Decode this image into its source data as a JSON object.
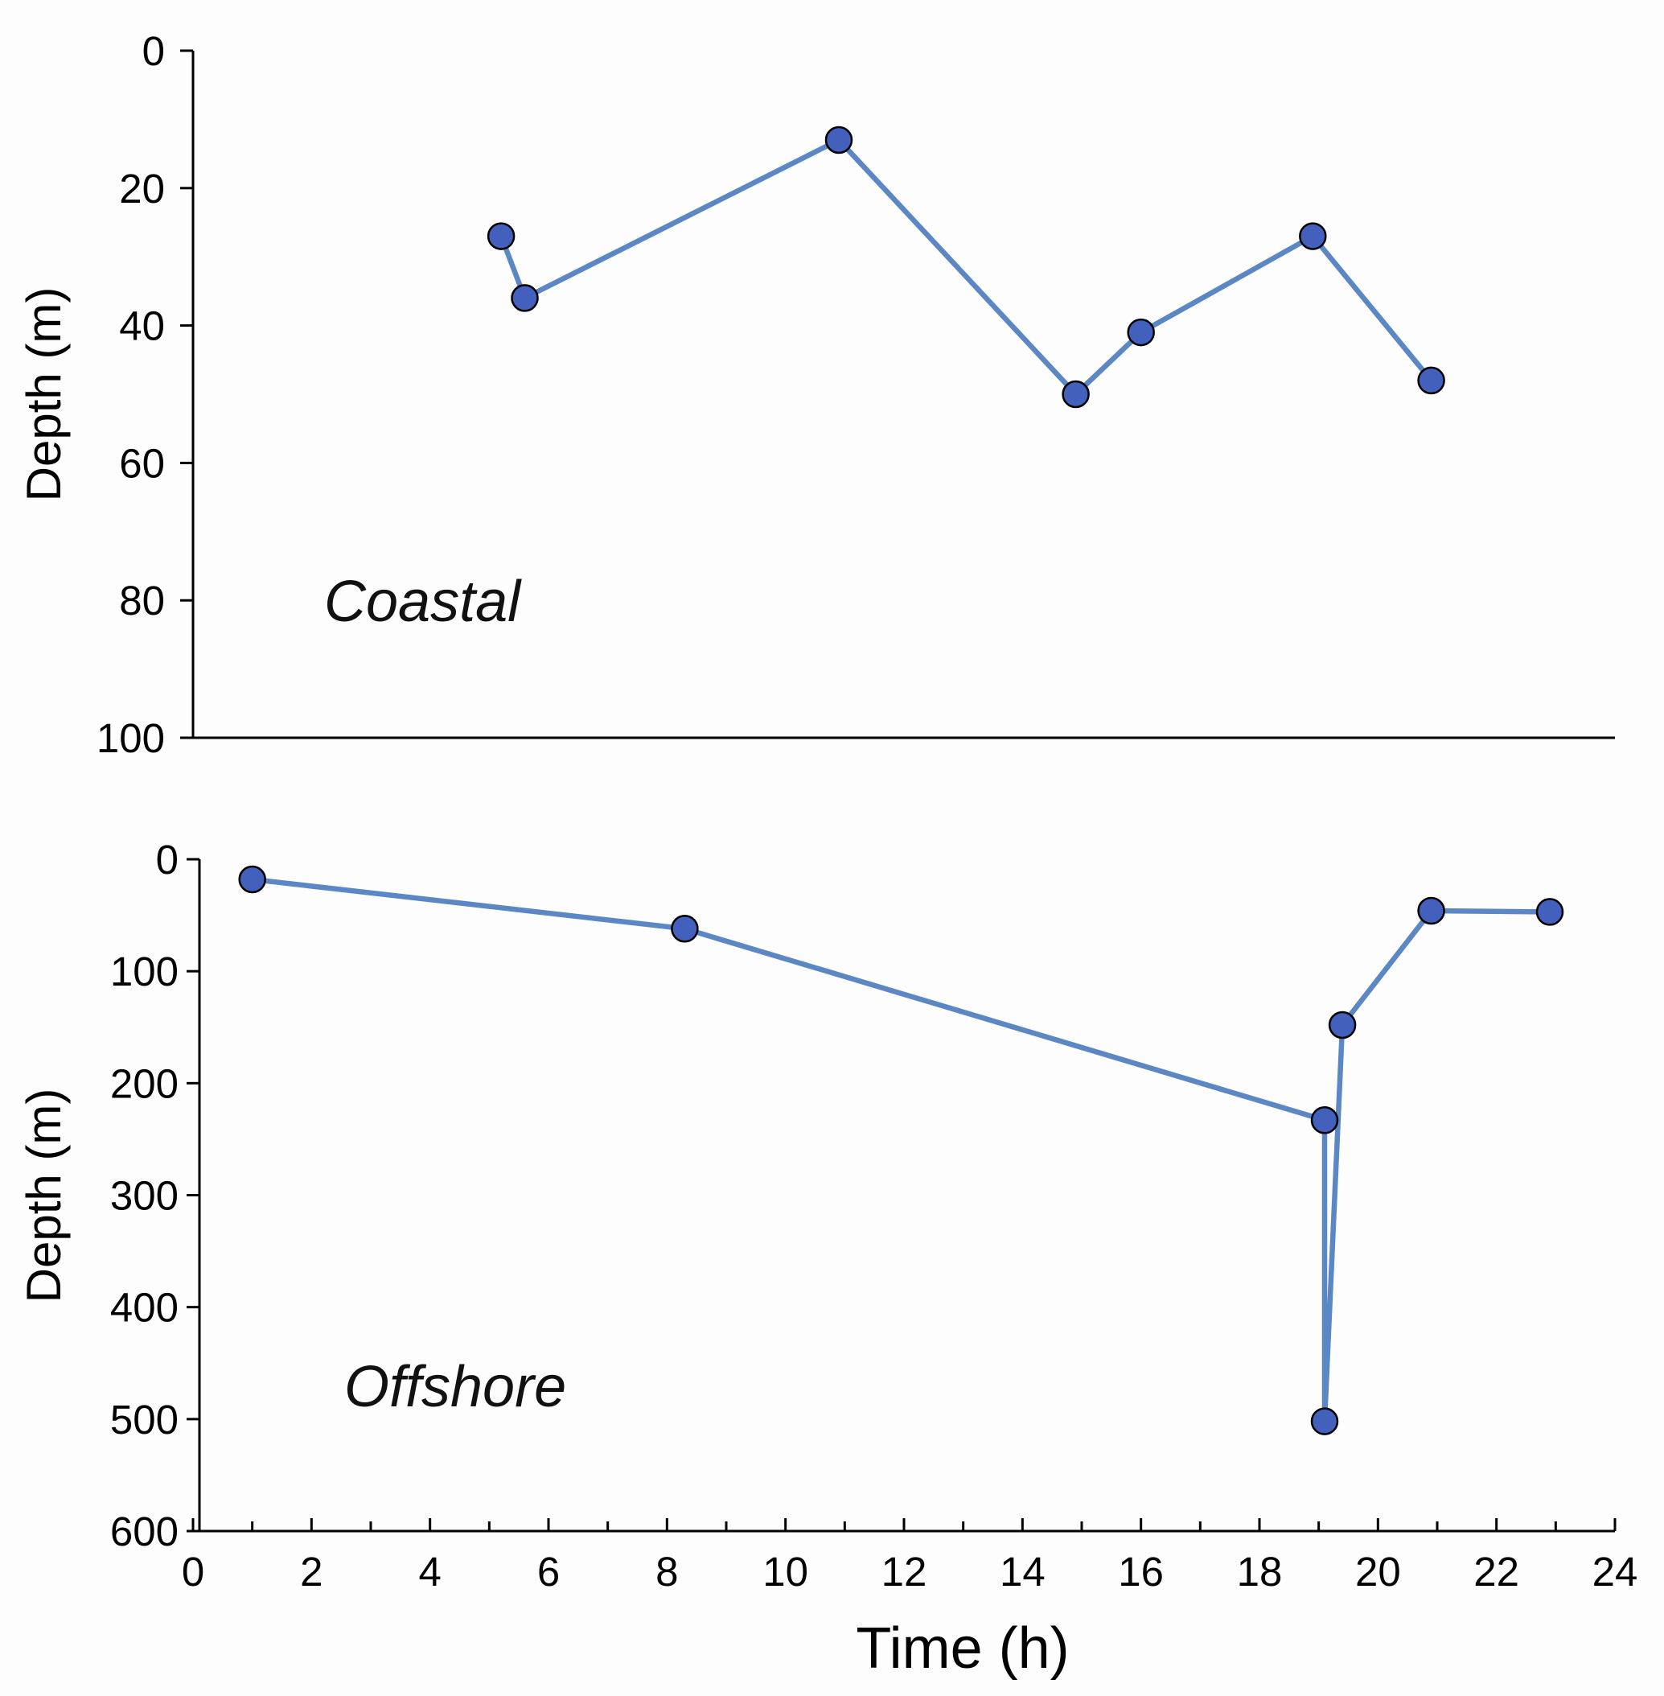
{
  "colors": {
    "line": "#5b87c5",
    "marker": "#4460bd",
    "marker_edge": "#000000"
  },
  "chart_data": [
    {
      "type": "line",
      "panel_label": "Coastal",
      "ylabel": "Depth (m)",
      "ylim": [
        0,
        100
      ],
      "y_inverted": true,
      "xlim": [
        0,
        24
      ],
      "yticks": [
        "0",
        "20",
        "40",
        "60",
        "80",
        "100"
      ],
      "x_axis_shown": false,
      "series": [
        {
          "name": "Coastal",
          "x": [
            5.2,
            5.6,
            10.9,
            14.9,
            16.0,
            18.9,
            20.9
          ],
          "y": [
            27,
            36,
            13,
            50,
            41,
            27,
            48
          ]
        }
      ]
    },
    {
      "type": "line",
      "panel_label": "Offshore",
      "ylabel": "Depth (m)",
      "xlabel": "Time (h)",
      "ylim": [
        0,
        600
      ],
      "y_inverted": true,
      "xlim": [
        0,
        24
      ],
      "yticks": [
        "0",
        "100",
        "200",
        "300",
        "400",
        "500",
        "600"
      ],
      "xticks": [
        "0",
        "2",
        "4",
        "6",
        "8",
        "10",
        "12",
        "14",
        "16",
        "18",
        "20",
        "22",
        "24"
      ],
      "series": [
        {
          "name": "Offshore",
          "x": [
            1.0,
            8.3,
            19.1,
            19.1,
            19.4,
            20.9,
            22.9
          ],
          "y": [
            18,
            62,
            233,
            502,
            148,
            46,
            47
          ]
        }
      ]
    }
  ]
}
